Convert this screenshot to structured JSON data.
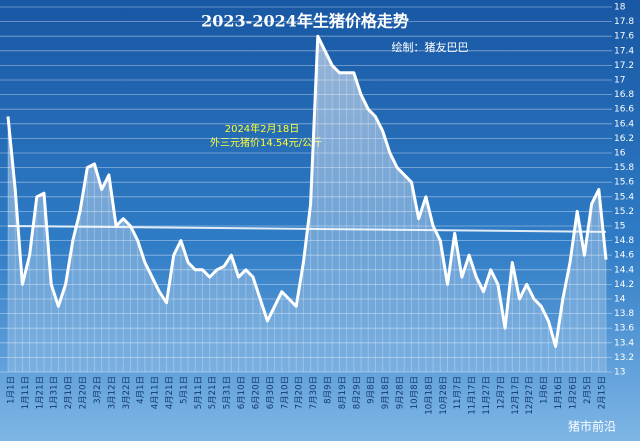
{
  "chart_data": {
    "type": "area",
    "title": "2023-2024年生猪价格走势",
    "subtitle": "绘制：猪友巴巴",
    "annotation": [
      "2024年2月18日",
      "外三元猪价14.54元/公斤"
    ],
    "watermark": "猪市前沿",
    "categories": [
      "1月1日",
      null,
      "1月11日",
      null,
      "1月21日",
      null,
      "1月31日",
      null,
      "2月10日",
      null,
      "2月20日",
      null,
      "3月2日",
      null,
      "3月12日",
      null,
      "3月22日",
      null,
      "4月1日",
      null,
      "4月11日",
      null,
      "4月21日",
      null,
      "5月1日",
      null,
      "5月11日",
      null,
      "5月21日",
      null,
      "5月31日",
      null,
      "6月10日",
      null,
      "6月20日",
      null,
      "6月30日",
      null,
      "7月10日",
      null,
      "7月20日",
      null,
      "7月30日",
      null,
      "8月9日",
      null,
      "8月19日",
      null,
      "8月29日",
      null,
      "9月8日",
      null,
      "9月18日",
      null,
      "9月28日",
      null,
      "10月8日",
      null,
      "10月18日",
      null,
      "10月28日",
      null,
      "11月7日",
      null,
      "11月17日",
      null,
      "11月27日",
      null,
      "12月7日",
      null,
      "12月17日",
      null,
      "12月27日",
      null,
      "1月6日",
      null,
      "1月16日",
      null,
      "1月26日",
      null,
      "2月5日",
      null,
      "2月15日",
      null
    ],
    "values": [
      16.5,
      15.5,
      14.2,
      14.6,
      15.4,
      15.45,
      14.2,
      13.9,
      14.2,
      14.8,
      15.2,
      15.8,
      15.85,
      15.5,
      15.7,
      15.0,
      15.1,
      15.0,
      14.8,
      14.5,
      14.3,
      14.1,
      13.95,
      14.6,
      14.8,
      14.5,
      14.4,
      14.4,
      14.3,
      14.4,
      14.45,
      14.6,
      14.3,
      14.4,
      14.3,
      14.0,
      13.7,
      13.9,
      14.1,
      14.0,
      13.9,
      14.5,
      15.3,
      17.6,
      17.4,
      17.2,
      17.1,
      17.1,
      17.1,
      16.8,
      16.6,
      16.5,
      16.3,
      16.0,
      15.8,
      15.7,
      15.6,
      15.1,
      15.4,
      15.0,
      14.8,
      14.2,
      14.9,
      14.3,
      14.6,
      14.3,
      14.1,
      14.4,
      14.2,
      13.6,
      14.5,
      14.0,
      14.2,
      14.0,
      13.9,
      13.7,
      13.35,
      14.0,
      14.5,
      15.2,
      14.6,
      15.3,
      15.5,
      14.54
    ],
    "trend": [
      15.0,
      14.92
    ],
    "color": "#ffffff",
    "ylim": [
      13,
      18
    ],
    "yticks": [
      13,
      13.2,
      13.4,
      13.6,
      13.8,
      14,
      14.2,
      14.4,
      14.6,
      14.8,
      15,
      15.2,
      15.4,
      15.6,
      15.8,
      16,
      16.2,
      16.4,
      16.6,
      16.8,
      17,
      17.2,
      17.4,
      17.6,
      17.8,
      18
    ],
    "grid": true
  }
}
